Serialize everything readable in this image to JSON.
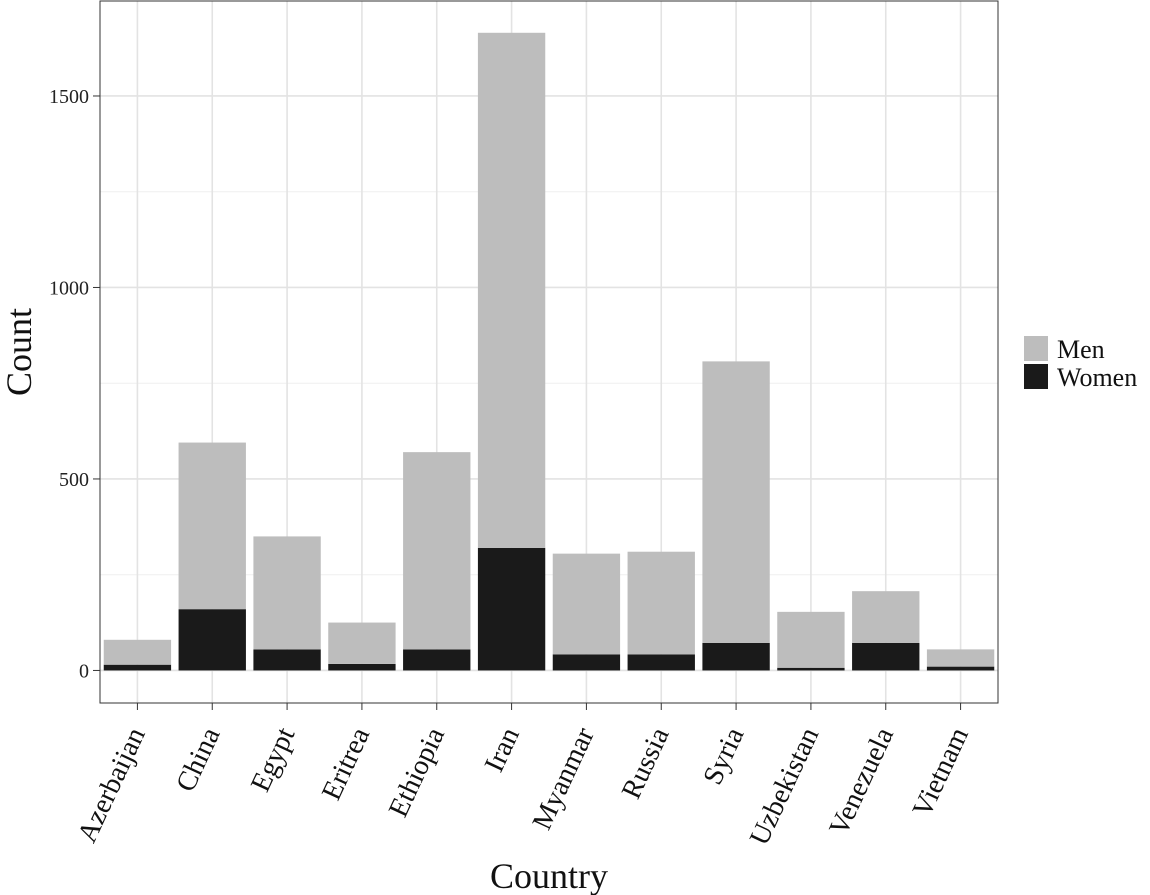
{
  "chart_data": {
    "type": "bar",
    "stacked": true,
    "categories": [
      "Azerbaijan",
      "China",
      "Egypt",
      "Eritrea",
      "Ethiopia",
      "Iran",
      "Myanmar",
      "Russia",
      "Syria",
      "Uzbekistan",
      "Venezuela",
      "Vietnam"
    ],
    "series": [
      {
        "name": "Women",
        "color": "#1a1a1a",
        "values": [
          15,
          160,
          55,
          17,
          55,
          320,
          42,
          42,
          72,
          7,
          72,
          10
        ]
      },
      {
        "name": "Men",
        "color": "#bdbdbd",
        "values": [
          65,
          435,
          295,
          108,
          515,
          1345,
          263,
          268,
          735,
          146,
          135,
          45
        ]
      }
    ],
    "totals": [
      80,
      595,
      350,
      125,
      570,
      1665,
      305,
      310,
      807,
      153,
      207,
      55
    ],
    "xlabel": "Country",
    "ylabel": "Count",
    "yticks": [
      0,
      500,
      1000,
      1500
    ],
    "ylim": [
      -85,
      1748
    ],
    "legend": {
      "position": "right",
      "entries": [
        "Men",
        "Women"
      ]
    },
    "grid": true
  }
}
